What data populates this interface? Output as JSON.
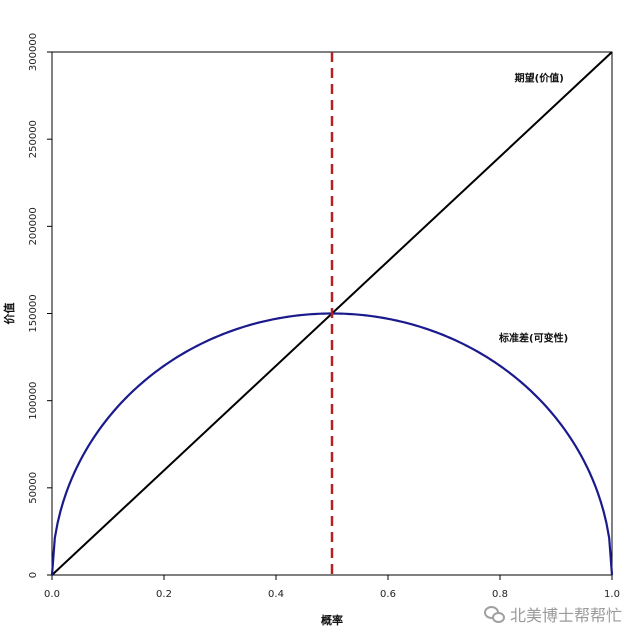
{
  "chart_data": {
    "type": "line",
    "xlabel": "概率",
    "ylabel": "价值",
    "xlim": [
      0,
      1
    ],
    "ylim": [
      0,
      300000
    ],
    "x_ticks": [
      "0.0",
      "0.2",
      "0.4",
      "0.6",
      "0.8",
      "1.0"
    ],
    "y_ticks": [
      "0",
      "50000",
      "100000",
      "150000",
      "200000",
      "250000",
      "300000"
    ],
    "grid": false,
    "series": [
      {
        "name": "期望(价值)",
        "color": "#000000",
        "x": [
          0,
          1
        ],
        "y": [
          0,
          300000
        ]
      },
      {
        "name": "标准差(可变性)",
        "color": "#1a1a8c",
        "x": [
          0,
          0.01,
          0.02,
          0.05,
          0.1,
          0.15,
          0.2,
          0.25,
          0.3,
          0.35,
          0.4,
          0.45,
          0.5,
          0.55,
          0.6,
          0.65,
          0.7,
          0.75,
          0.8,
          0.85,
          0.9,
          0.95,
          0.98,
          0.99,
          1
        ],
        "y": [
          0,
          29850,
          42000,
          65383,
          90000,
          107121,
          120000,
          129904,
          137477,
          143091,
          146969,
          149248,
          150000,
          149248,
          146969,
          143091,
          137477,
          129904,
          120000,
          107121,
          90000,
          65383,
          42000,
          29850,
          0
        ]
      }
    ],
    "vline": {
      "x": 0.5,
      "color": "#b22222",
      "style": "dashed"
    },
    "annotations": [
      {
        "text": "期望(价值)",
        "x": 0.87,
        "y": 283000
      },
      {
        "text": "标准差(可变性)",
        "x": 0.86,
        "y": 134000
      }
    ]
  },
  "watermark": "北美博士帮帮忙"
}
